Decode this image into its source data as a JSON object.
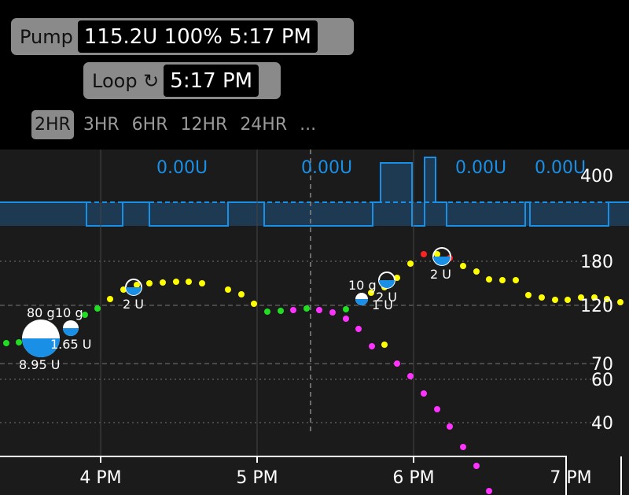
{
  "pump": {
    "label": "Pump",
    "value": "115.2U 100% 5:17 PM"
  },
  "loop": {
    "label": "Loop ↻",
    "value": "5:17 PM"
  },
  "ranges": [
    "2HR",
    "3HR",
    "6HR",
    "12HR",
    "24HR",
    "..."
  ],
  "active_range": "2HR",
  "chart_data": {
    "type": "scatter",
    "xlabels": [
      "4 PM",
      "5 PM",
      "6 PM",
      "7 PM"
    ],
    "bg_ticks": [
      "180",
      "120",
      "70",
      "60",
      "40"
    ],
    "basal_tick": "400",
    "basal_labels": [
      "0.00U",
      "0.00U",
      "0.00U",
      "0.00U"
    ],
    "treatments": [
      {
        "label": "80 g"
      },
      {
        "label": "10 g"
      },
      {
        "label": "1.65 U"
      },
      {
        "label": "8.95 U"
      },
      {
        "label": "2 U"
      },
      {
        "label": "10 g"
      },
      {
        "label": "2 U"
      },
      {
        "label": "1 U"
      },
      {
        "label": "2 U"
      }
    ],
    "colors": {
      "in_range": "#ffff00",
      "low": "#22dd22",
      "predicted": "#ff33ff",
      "high": "#ff2222",
      "insulin": "#1a8fe6",
      "basal": "#1a8fe6"
    }
  }
}
